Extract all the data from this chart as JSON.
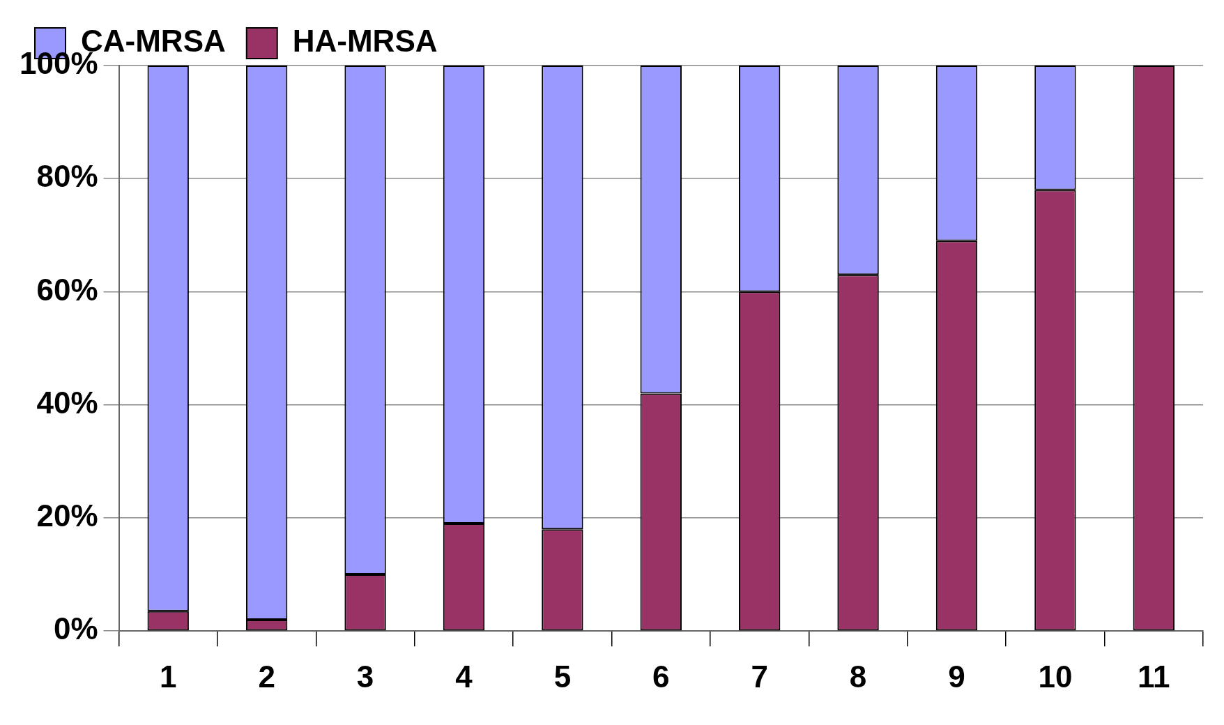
{
  "chart_data": {
    "type": "bar",
    "stacked": true,
    "categories": [
      "1",
      "2",
      "3",
      "4",
      "5",
      "6",
      "7",
      "8",
      "9",
      "10",
      "11"
    ],
    "series": [
      {
        "name": "HA-MRSA",
        "color": "#993366",
        "values": [
          3.5,
          2,
          10,
          19,
          18,
          42,
          60,
          63,
          69,
          78,
          100
        ]
      },
      {
        "name": "CA-MRSA",
        "color": "#9999ff",
        "values": [
          96.5,
          98,
          90,
          81,
          82,
          58,
          40,
          37,
          31,
          22,
          0
        ]
      }
    ],
    "ylim": [
      0,
      100
    ],
    "yticks": [
      {
        "value": 0,
        "label": "0%"
      },
      {
        "value": 20,
        "label": "20%"
      },
      {
        "value": 40,
        "label": "40%"
      },
      {
        "value": 60,
        "label": "60%"
      },
      {
        "value": 80,
        "label": "80%"
      },
      {
        "value": 100,
        "label": "100%"
      }
    ],
    "grid": "y",
    "legend": "top left"
  }
}
